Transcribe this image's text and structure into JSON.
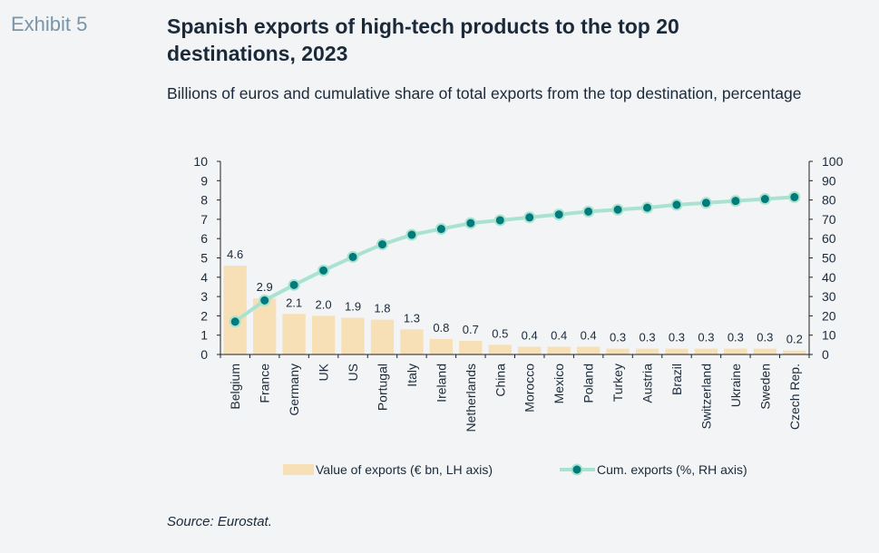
{
  "header": {
    "exhibit": "Exhibit 5",
    "title": "Spanish exports of high-tech products to the top 20 destinations, 2023",
    "subtitle": "Billions of euros and cumulative share of total exports from the top destination, percentage"
  },
  "footer": {
    "source": "Source: Eurostat."
  },
  "colors": {
    "bar": "#f7dfb6",
    "line": "#a8e3d1",
    "marker": "#007a7a",
    "text": "#1b2a3a",
    "axis": "#222222"
  },
  "chart_data": {
    "type": "bar+line",
    "categories": [
      "Belgium",
      "France",
      "Germany",
      "UK",
      "US",
      "Portugal",
      "Italy",
      "Ireland",
      "Netherlands",
      "China",
      "Morocco",
      "Mexico",
      "Poland",
      "Turkey",
      "Austria",
      "Brazil",
      "Switzerland",
      "Ukraine",
      "Sweden",
      "Czech Rep."
    ],
    "series": [
      {
        "name": "Value of exports (€ bn, LH axis)",
        "type": "bar",
        "axis": "left",
        "values": [
          4.6,
          2.9,
          2.1,
          2.0,
          1.9,
          1.8,
          1.3,
          0.8,
          0.7,
          0.5,
          0.4,
          0.4,
          0.4,
          0.3,
          0.3,
          0.3,
          0.3,
          0.3,
          0.3,
          0.2
        ],
        "labels": [
          "4.6",
          "2.9",
          "2.1",
          "2.0",
          "1.9",
          "1.8",
          "1.3",
          "0.8",
          "0.7",
          "0.5",
          "0.4",
          "0.4",
          "0.4",
          "0.3",
          "0.3",
          "0.3",
          "0.3",
          "0.3",
          "0.3",
          "0.2"
        ]
      },
      {
        "name": "Cum. exports (%, RH axis)",
        "type": "line",
        "axis": "right",
        "values": [
          17,
          28,
          36,
          43.5,
          50.5,
          57,
          62,
          65,
          68,
          69.5,
          71,
          72.5,
          74,
          75,
          76,
          77.5,
          78.5,
          79.5,
          80.5,
          81.5
        ]
      }
    ],
    "ylim_left": [
      0,
      10
    ],
    "yticks_left": [
      "0",
      "1",
      "2",
      "3",
      "4",
      "5",
      "6",
      "7",
      "8",
      "9",
      "10"
    ],
    "ylim_right": [
      0,
      100
    ],
    "yticks_right": [
      "0",
      "10",
      "20",
      "30",
      "40",
      "50",
      "60",
      "70",
      "80",
      "90",
      "100"
    ],
    "grid": false,
    "legend_position": "bottom"
  }
}
